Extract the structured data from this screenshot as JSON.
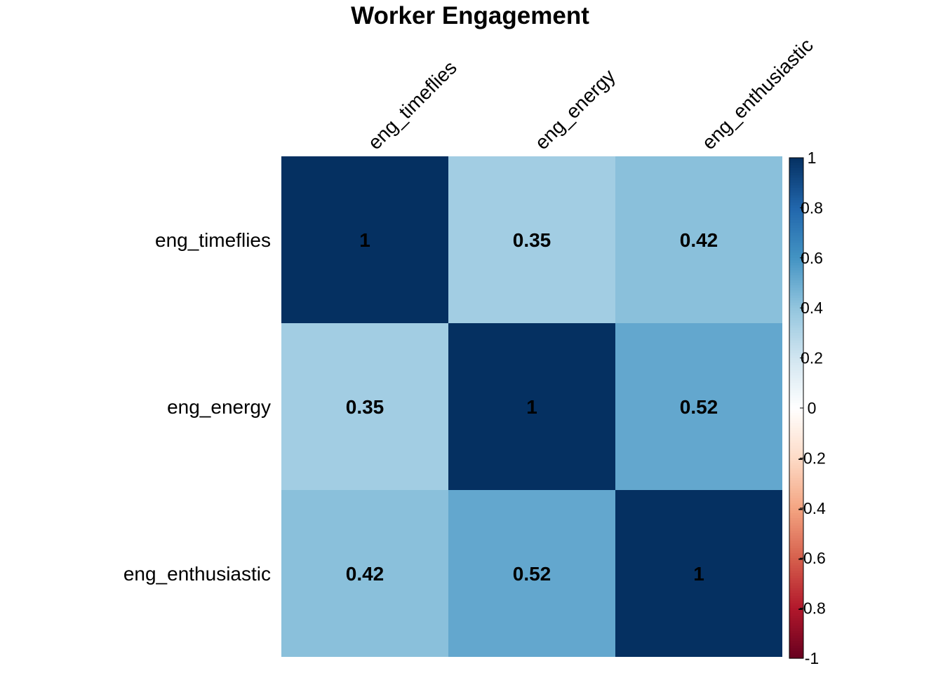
{
  "chart_data": {
    "type": "heatmap",
    "title": "Worker Engagement",
    "row_labels": [
      "eng_timeflies",
      "eng_energy",
      "eng_enthusiastic"
    ],
    "col_labels": [
      "eng_timeflies",
      "eng_energy",
      "eng_enthusiastic"
    ],
    "values": [
      [
        1,
        0.35,
        0.42
      ],
      [
        0.35,
        1,
        0.52
      ],
      [
        0.42,
        0.52,
        1
      ]
    ],
    "value_labels": [
      [
        "1",
        "0.35",
        "0.42"
      ],
      [
        "0.35",
        "1",
        "0.52"
      ],
      [
        "0.42",
        "0.52",
        "1"
      ]
    ],
    "colorbar": {
      "range": [
        -1,
        1
      ],
      "ticks": [
        1,
        0.8,
        0.6,
        0.4,
        0.2,
        0,
        -0.2,
        -0.4,
        -0.6,
        -0.8,
        -1
      ],
      "tick_labels": [
        "1",
        "0.8",
        "0.6",
        "0.4",
        "0.2",
        "0",
        "-0.2",
        "-0.4",
        "-0.6",
        "-0.8",
        "-1"
      ],
      "placement": "right"
    },
    "palette": [
      "#67001F",
      "#B2182B",
      "#D6604D",
      "#F4A582",
      "#FDDBC7",
      "#FFFFFF",
      "#D1E5F0",
      "#92C5DE",
      "#4393C3",
      "#2166AC",
      "#053061"
    ]
  }
}
